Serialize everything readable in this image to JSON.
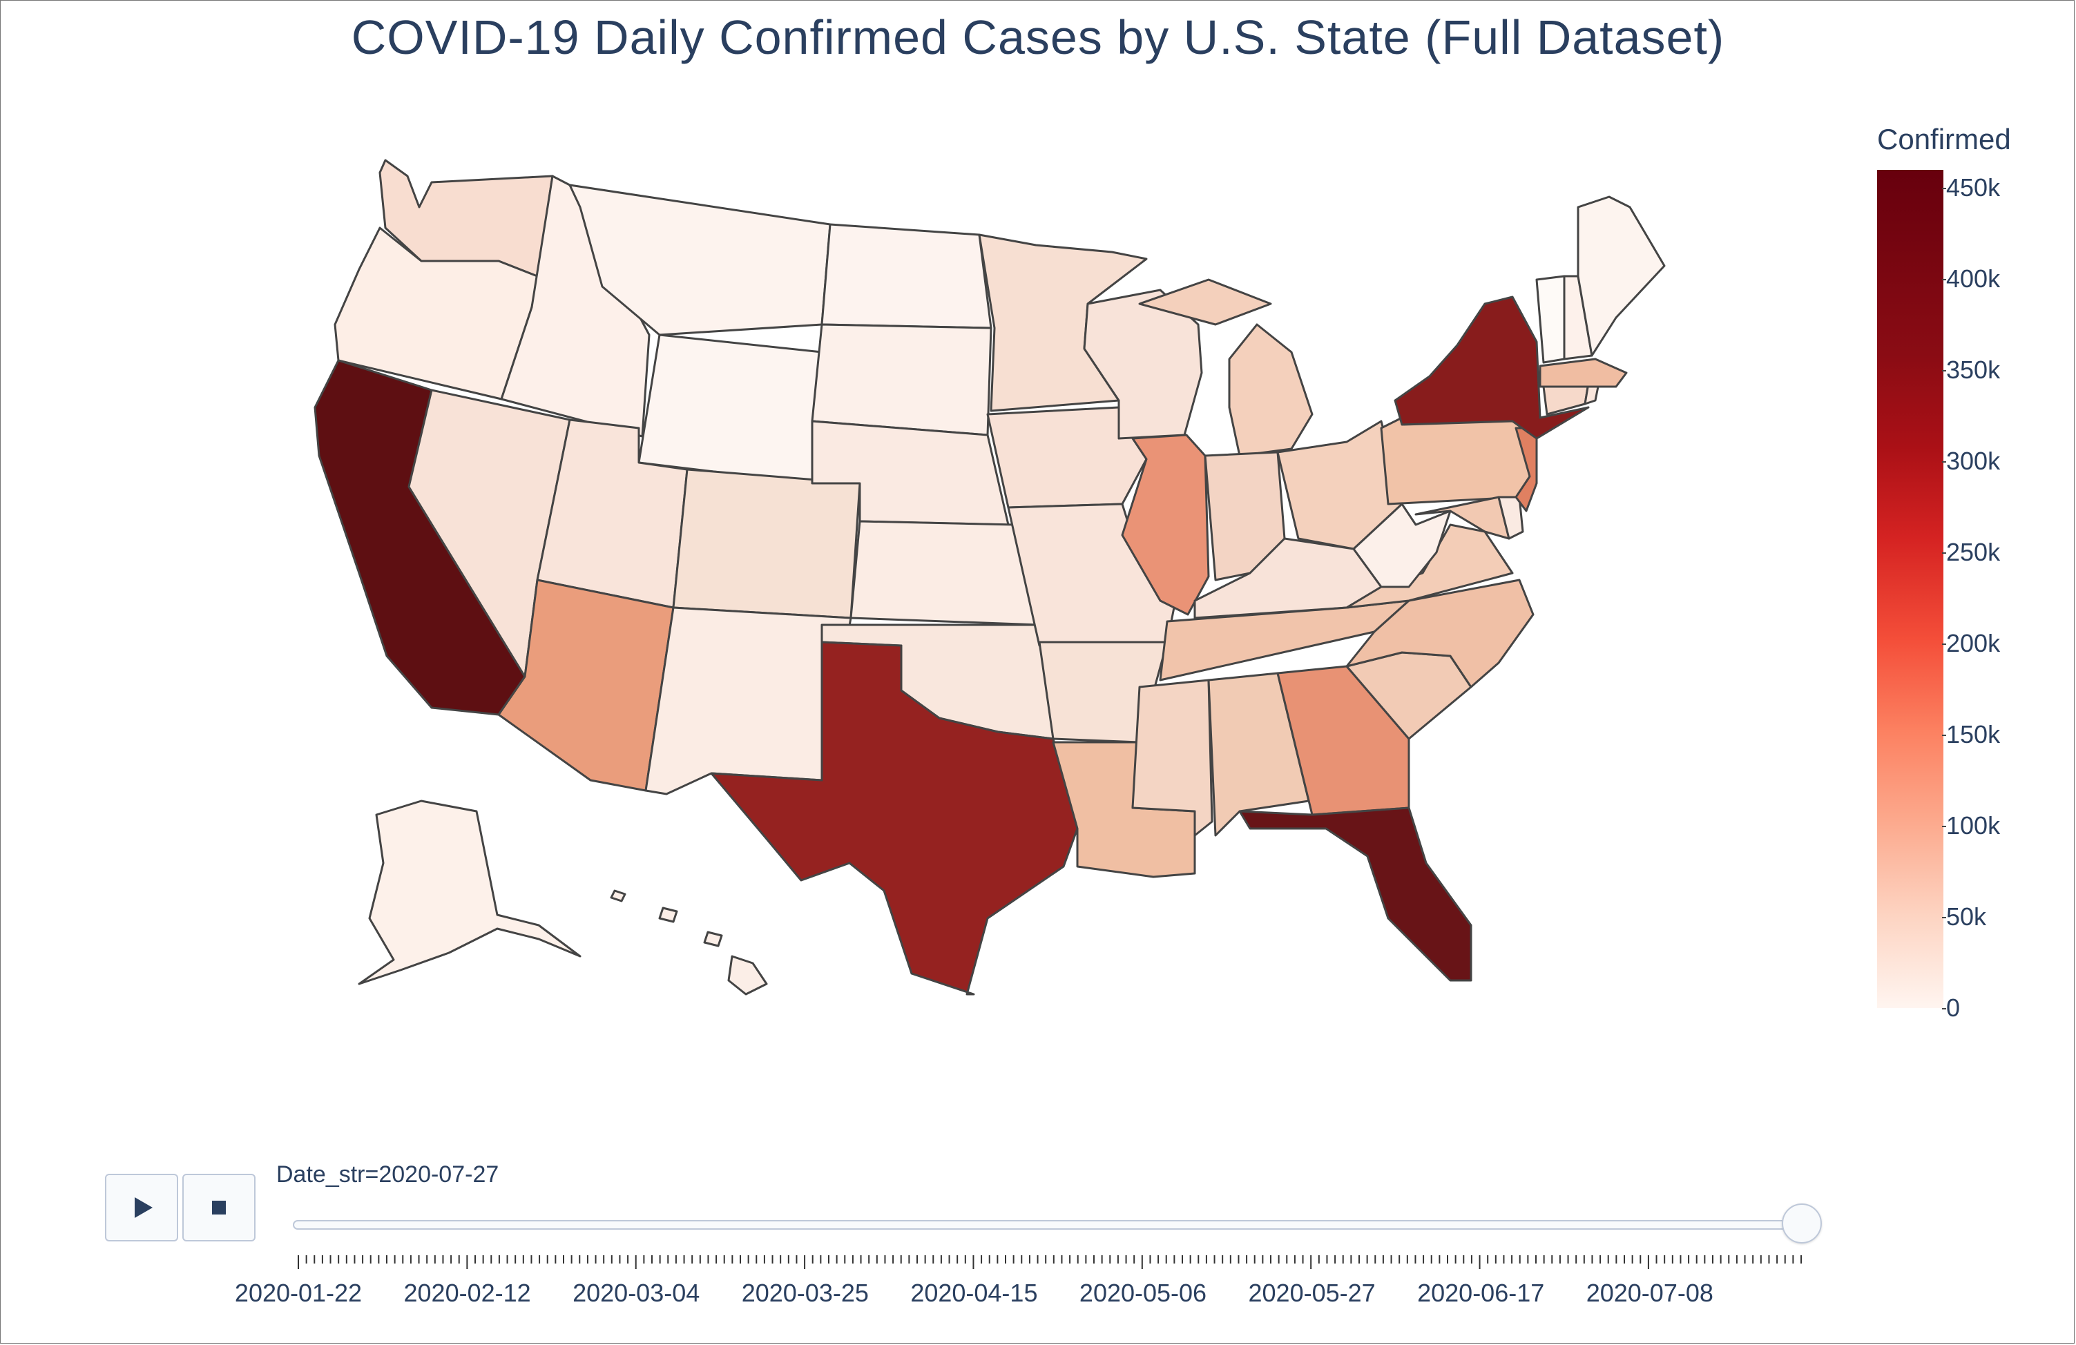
{
  "title": "COVID-19 Daily Confirmed Cases by U.S. State (Full Dataset)",
  "colorbar": {
    "title": "Confirmed",
    "ticks": [
      "0",
      "50k",
      "100k",
      "150k",
      "200k",
      "250k",
      "300k",
      "350k",
      "400k",
      "450k"
    ],
    "range": [
      0,
      460000
    ],
    "colorscale": [
      "#fff5f0",
      "#fee0d2",
      "#fcbba1",
      "#fc9272",
      "#fb6a4a",
      "#ef3b2c",
      "#cb181d",
      "#a50f15",
      "#67000d"
    ]
  },
  "animation": {
    "current_label": "Date_str=2020-07-27",
    "play_icon": "play-icon",
    "stop_icon": "stop-icon",
    "slider_value": 1.0,
    "date_labels": [
      "2020-01-22",
      "2020-02-12",
      "2020-03-04",
      "2020-03-25",
      "2020-04-15",
      "2020-05-06",
      "2020-05-27",
      "2020-06-17",
      "2020-07-08"
    ]
  },
  "map_data": {
    "type": "choropleth",
    "scope": "usa",
    "states": {
      "WA": "#f8ddd0",
      "OR": "#fdeee6",
      "CA": "#5e0f12",
      "NV": "#f8e2d7",
      "ID": "#fdf0ea",
      "MT": "#fdf3ee",
      "WY": "#fdf5f1",
      "UT": "#f9e4da",
      "AZ": "#ea9d7c",
      "CO": "#f6e1d4",
      "NM": "#fbece4",
      "ND": "#fdf3ef",
      "SD": "#fcf0ea",
      "NE": "#faeae2",
      "KS": "#fbece4",
      "OK": "#f9e7dd",
      "TX": "#952220",
      "MN": "#f7dfd2",
      "IA": "#f8e1d6",
      "MO": "#f9e4da",
      "AR": "#f7e2d6",
      "LA": "#f0bfa3",
      "WI": "#f8e3d9",
      "IL": "#ea9376",
      "MI": "#f4d0bc",
      "IN": "#f3d4c4",
      "OH": "#f4d1bd",
      "KY": "#f8e3d9",
      "TN": "#f1c4ab",
      "MS": "#f4d5c4",
      "AL": "#f1cbb4",
      "GA": "#e89274",
      "FL": "#681417",
      "SC": "#f2cbb5",
      "NC": "#f0c0a6",
      "VA": "#f3cdb7",
      "WV": "#fcf0ea",
      "PA": "#f1c3a8",
      "NY": "#881c1c",
      "NJ": "#e08061",
      "MD": "#f2c9b2",
      "DE": "#faeae2",
      "CT": "#f6d9ca",
      "RI": "#fae7dd",
      "MA": "#f0bda2",
      "VT": "#fefaf7",
      "NH": "#fdf1eb",
      "ME": "#fdf4ef",
      "AK": "#fdf1ea",
      "HI": "#fbeee7"
    }
  }
}
